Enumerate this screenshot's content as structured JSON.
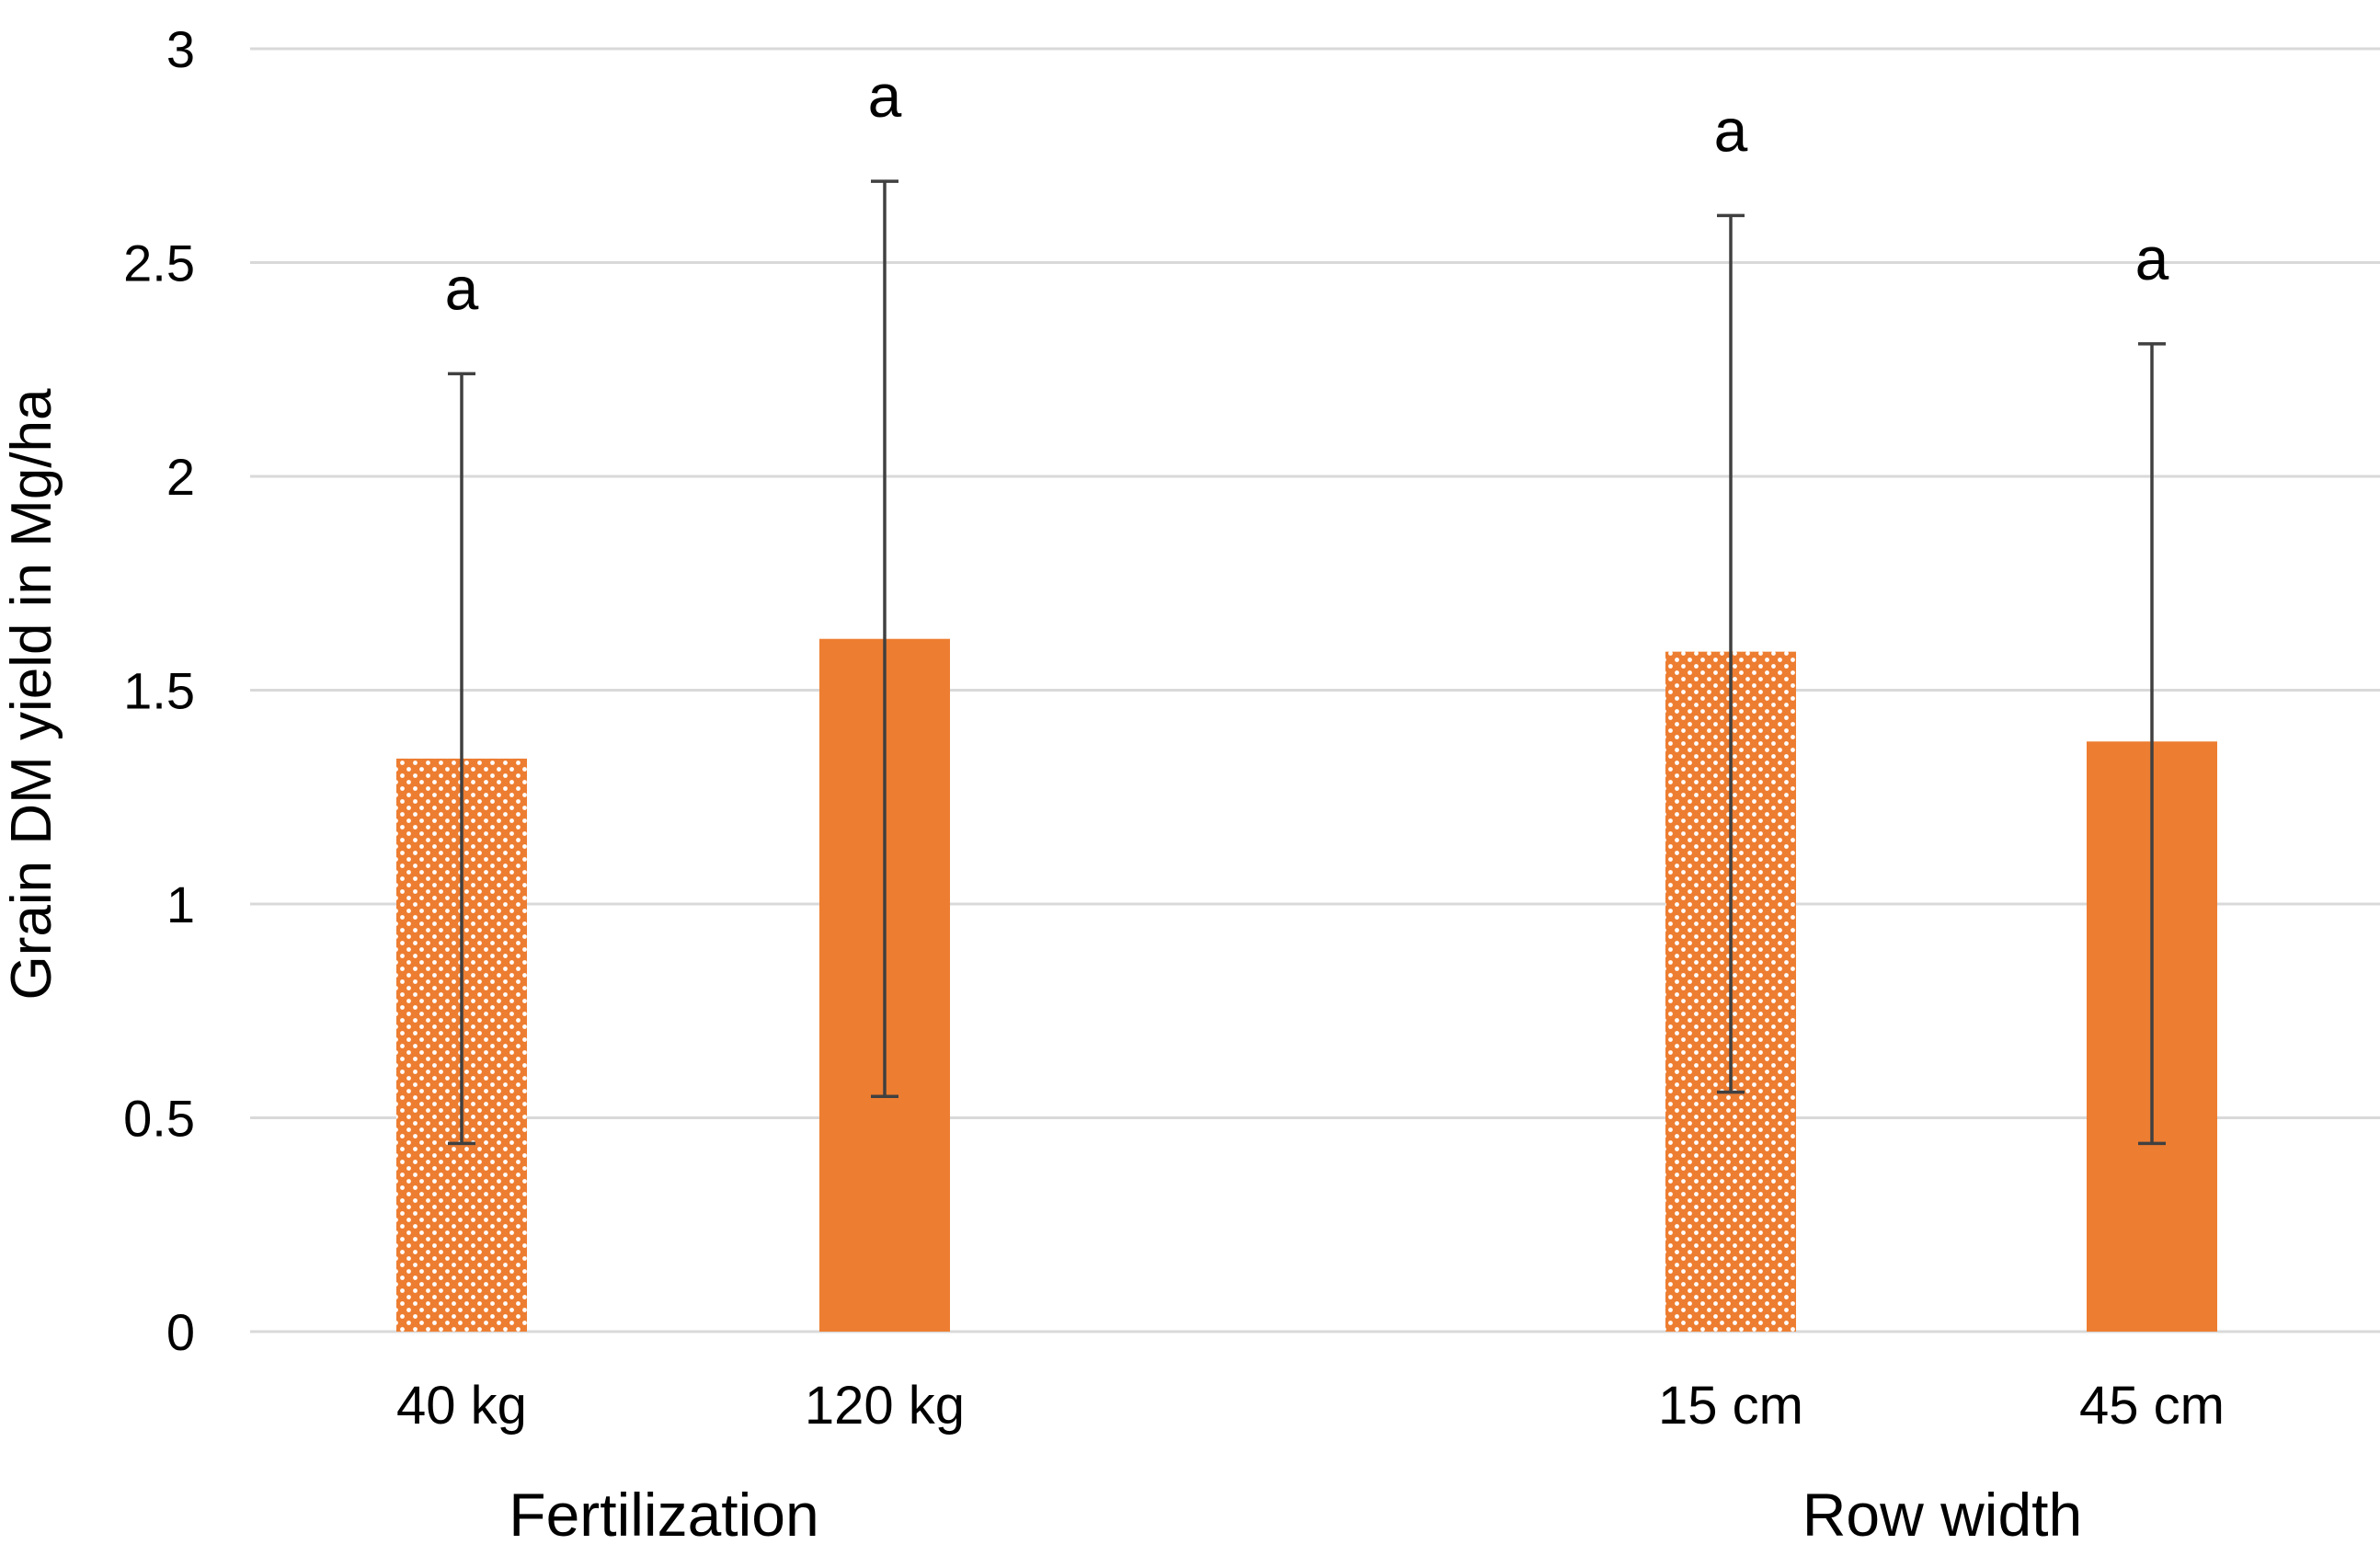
{
  "chart_data": {
    "type": "bar",
    "title": "",
    "xlabel": "",
    "ylabel": "Grain DM yield in Mg/ha",
    "ylim": [
      0,
      3
    ],
    "yticks": [
      0,
      0.5,
      1,
      1.5,
      2,
      2.5,
      3
    ],
    "ytick_labels": [
      "0",
      "0.5",
      "1",
      "1.5",
      "2",
      "2.5",
      "3"
    ],
    "grid": true,
    "legend": "none",
    "colors": {
      "bar": "#ED7D31",
      "dots": "#ffffff",
      "grid": "#d9d9d9",
      "error_bar": "#404040"
    },
    "categories": [
      "40 kg",
      "120 kg",
      "15 cm",
      "45 cm"
    ],
    "values": [
      1.34,
      1.62,
      1.59,
      1.38
    ],
    "error_low": [
      0.44,
      0.55,
      0.56,
      0.44
    ],
    "error_high": [
      2.24,
      2.69,
      2.61,
      2.31
    ],
    "patterns": [
      "dotted",
      "solid",
      "dotted",
      "solid"
    ],
    "significance_labels": [
      "a",
      "a",
      "a",
      "a"
    ],
    "groups": [
      {
        "label": "Fertilization",
        "categories": [
          "40 kg",
          "120 kg"
        ]
      },
      {
        "label": "Row width",
        "categories": [
          "15 cm",
          "45 cm"
        ]
      }
    ]
  }
}
